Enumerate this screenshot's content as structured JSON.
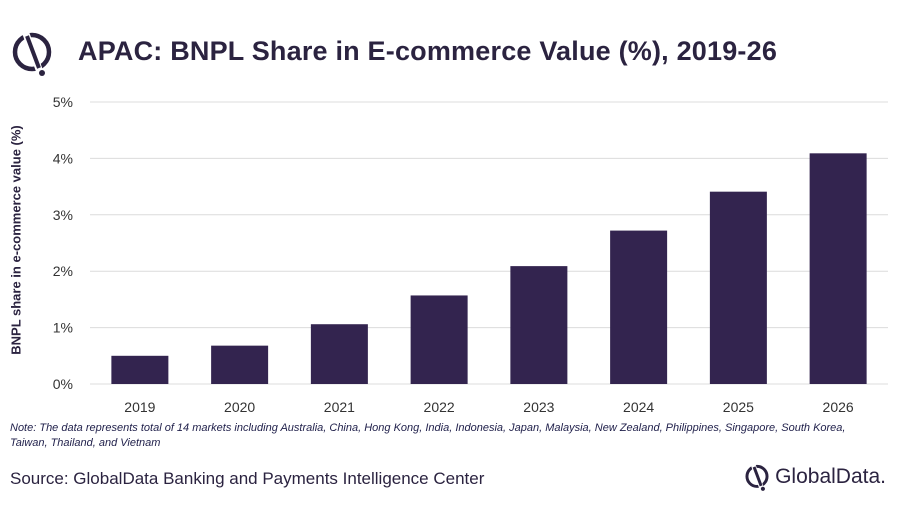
{
  "header": {
    "title": "APAC: BNPL Share in E-commerce Value (%), 2019-26"
  },
  "chart_data": {
    "type": "bar",
    "title": "APAC: BNPL Share in E-commerce Value (%), 2019-26",
    "xlabel": "",
    "ylabel": "BNPL share in e-commerce value (%)",
    "categories": [
      "2019",
      "2020",
      "2021",
      "2022",
      "2023",
      "2024",
      "2025",
      "2026"
    ],
    "values": [
      0.5,
      0.68,
      1.06,
      1.57,
      2.09,
      2.72,
      3.41,
      4.09
    ],
    "ylim": [
      0,
      5
    ],
    "yticks": [
      0,
      1,
      2,
      3,
      4,
      5
    ],
    "ytick_labels": [
      "0%",
      "1%",
      "2%",
      "3%",
      "4%",
      "5%"
    ],
    "grid": true,
    "legend": "none",
    "bar_color": "#33244f",
    "grid_color": "#dcdcdc"
  },
  "footer": {
    "note": "Note: The data represents total of 14 markets including Australia, China, Hong Kong, India, Indonesia, Japan, Malaysia, New Zealand, Philippines, Singapore, South Korea, Taiwan, Thailand, and Vietnam",
    "source": "Source: GlobalData Banking and Payments Intelligence Center",
    "brand": "GlobalData."
  },
  "colors": {
    "brand_dark": "#2b2340",
    "bar": "#33244f"
  },
  "icons": {
    "logo": "globaldata-logo-icon"
  }
}
